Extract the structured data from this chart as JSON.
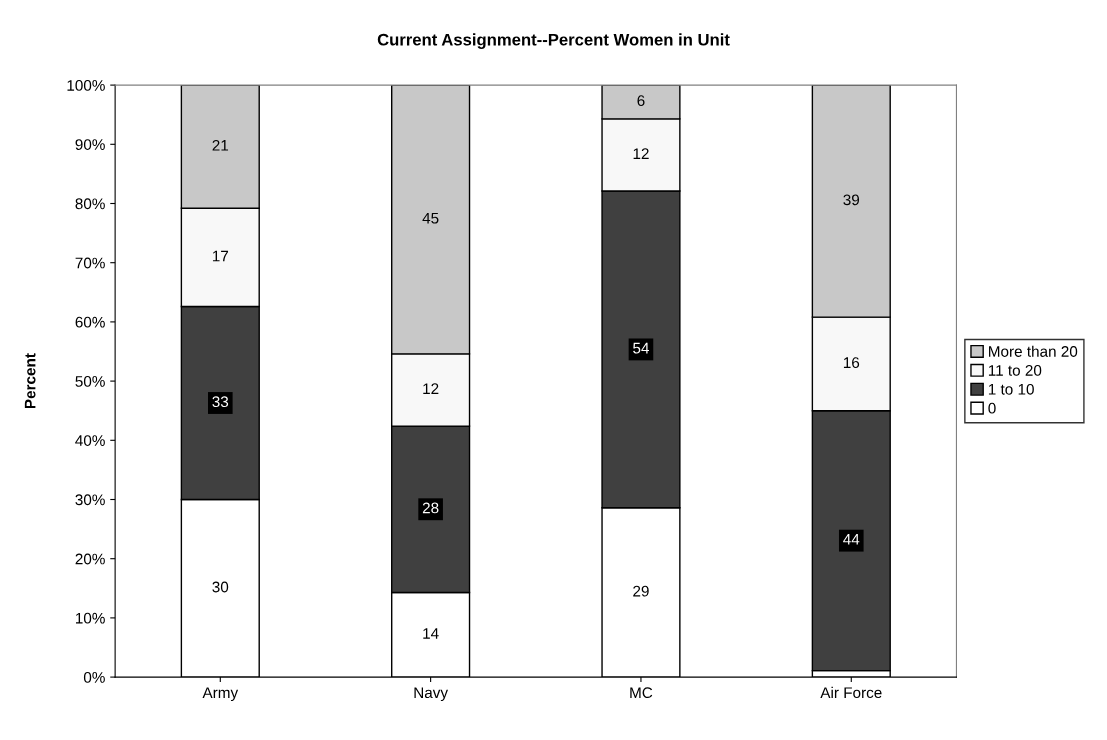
{
  "chart_data": {
    "type": "bar",
    "stacked": true,
    "title": "Current Assignment--Percent Women in Unit",
    "ylabel": "Percent",
    "categories": [
      "Army",
      "Navy",
      "MC",
      "Air Force"
    ],
    "series": [
      {
        "name": "0",
        "color": "#ffffff",
        "values": [
          30,
          14.3,
          28.6,
          1.1
        ],
        "value_labels": [
          "30",
          "14",
          "29",
          null
        ]
      },
      {
        "name": "1 to 10",
        "color": "#404040",
        "values": [
          32.6,
          28.1,
          53.5,
          43.9
        ],
        "value_labels": [
          "33",
          "28",
          "54",
          "44"
        ]
      },
      {
        "name": "11 to 20",
        "color": "#f8f8f8",
        "values": [
          16.6,
          12.2,
          12.2,
          15.8
        ],
        "value_labels": [
          "17",
          "12",
          "12",
          "16"
        ]
      },
      {
        "name": "More than 20",
        "color": "#c8c8c8",
        "values": [
          20.8,
          45.4,
          5.7,
          39.2
        ],
        "value_labels": [
          "21",
          "45",
          "6",
          "39"
        ]
      }
    ],
    "ylim": [
      0,
      100
    ],
    "yticks": [
      {
        "value": 0,
        "label": "0%"
      },
      {
        "value": 10,
        "label": "10%"
      },
      {
        "value": 20,
        "label": "20%"
      },
      {
        "value": 30,
        "label": "30%"
      },
      {
        "value": 40,
        "label": "40%"
      },
      {
        "value": 50,
        "label": "50%"
      },
      {
        "value": 60,
        "label": "60%"
      },
      {
        "value": 70,
        "label": "70%"
      },
      {
        "value": 80,
        "label": "80%"
      },
      {
        "value": 90,
        "label": "90%"
      },
      {
        "value": 100,
        "label": "100%"
      }
    ],
    "grid": false,
    "legend": "right"
  }
}
